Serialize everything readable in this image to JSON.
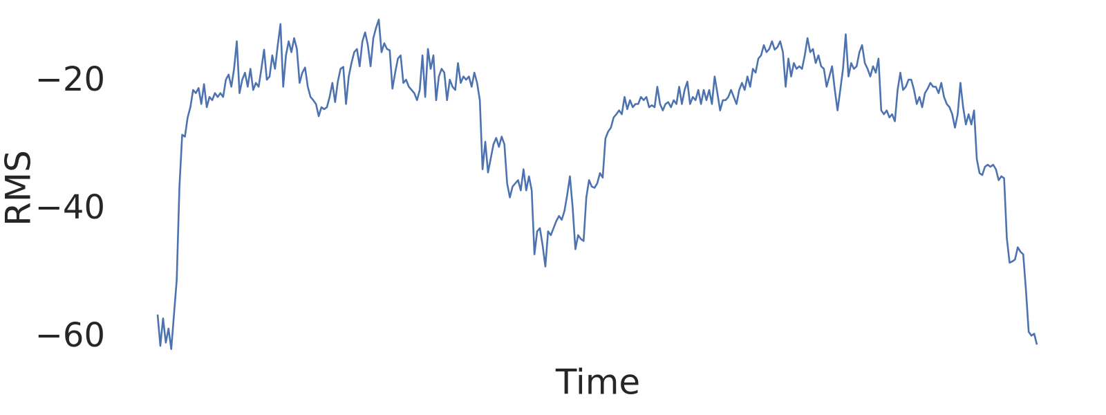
{
  "chart_data": {
    "type": "line",
    "xlabel": "Time",
    "ylabel": "RMS",
    "color": "#4c72b0",
    "grid": false,
    "ylim": [
      -63,
      -9
    ],
    "yticks": [
      {
        "value": -60,
        "label": "−60"
      },
      {
        "value": -40,
        "label": "−40"
      },
      {
        "value": -20,
        "label": "−20"
      }
    ],
    "values": [
      -56.4,
      -61.3,
      -57,
      -60.8,
      -58.6,
      -61.8,
      -56.4,
      -51,
      -36.4,
      -28.3,
      -28.6,
      -25.6,
      -24,
      -21.3,
      -21.8,
      -21,
      -23.5,
      -20.4,
      -24,
      -22.4,
      -22.9,
      -21.8,
      -22.4,
      -21.8,
      -22.4,
      -19.7,
      -18.9,
      -20.8,
      -18,
      -13.7,
      -21.8,
      -19.7,
      -18.6,
      -20.8,
      -18,
      -21.3,
      -20.2,
      -20.8,
      -18,
      -15,
      -19.7,
      -19.2,
      -15.9,
      -18,
      -14.3,
      -11,
      -20.8,
      -15.9,
      -13.7,
      -15.4,
      -13.2,
      -14.9,
      -20.2,
      -18.6,
      -17.8,
      -20.8,
      -22.4,
      -22.9,
      -23.5,
      -25.4,
      -24,
      -24.3,
      -24,
      -22.4,
      -20.2,
      -23.2,
      -20,
      -18,
      -17.7,
      -23.5,
      -19.2,
      -17.1,
      -15.4,
      -14.9,
      -17.6,
      -13.7,
      -12.3,
      -14.3,
      -17.6,
      -13.2,
      -11.6,
      -10.3,
      -15.4,
      -14,
      -14.9,
      -15.1,
      -21.1,
      -18.6,
      -16.4,
      -15.9,
      -20.2,
      -19.7,
      -20.8,
      -21.3,
      -21.8,
      -22.9,
      -21.3,
      -15.9,
      -22.4,
      -14.9,
      -18,
      -15.9,
      -22.9,
      -19.2,
      -18,
      -18.6,
      -22.9,
      -19.7,
      -20.8,
      -21.3,
      -17.1,
      -20.2,
      -19.2,
      -19.7,
      -19.2,
      -20.8,
      -18.6,
      -20.2,
      -22.9,
      -33.7,
      -29.4,
      -34.2,
      -32,
      -29.8,
      -28.8,
      -30.2,
      -28.6,
      -29.8,
      -35.9,
      -38.1,
      -36.4,
      -35.9,
      -35.4,
      -37,
      -33.7,
      -37,
      -34.8,
      -37,
      -47,
      -43.4,
      -42.9,
      -45.6,
      -48.9,
      -43.4,
      -44,
      -42.9,
      -41.8,
      -41,
      -41.6,
      -40.2,
      -37.7,
      -34.8,
      -39.7,
      -46.2,
      -44,
      -44.6,
      -44.9,
      -38.1,
      -35.4,
      -36.4,
      -36.6,
      -35.9,
      -34.3,
      -35,
      -28.9,
      -27.8,
      -27.2,
      -25.6,
      -25.1,
      -24.5,
      -25.1,
      -22.4,
      -24.3,
      -22.9,
      -24,
      -23.5,
      -23.5,
      -22.4,
      -22.9,
      -22.4,
      -24,
      -23.7,
      -24,
      -20.8,
      -23.5,
      -24.5,
      -23.5,
      -23.2,
      -24,
      -22.9,
      -23.5,
      -20.8,
      -23.5,
      -21.3,
      -20,
      -23.5,
      -22.4,
      -22.9,
      -21.3,
      -23.5,
      -21.3,
      -22.9,
      -21.3,
      -23.5,
      -19.2,
      -21.8,
      -24.5,
      -22.9,
      -22.9,
      -22.4,
      -21.3,
      -22.4,
      -23.5,
      -21.3,
      -20.2,
      -21.3,
      -19.2,
      -20.8,
      -18,
      -18.6,
      -16.4,
      -15.9,
      -14.3,
      -15.4,
      -14.9,
      -13.7,
      -15,
      -14.6,
      -13.7,
      -15.4,
      -20.8,
      -16.4,
      -19.2,
      -17.1,
      -18,
      -17.6,
      -18,
      -15.9,
      -13.2,
      -15.4,
      -14.9,
      -17.1,
      -15.9,
      -17.6,
      -18,
      -20.8,
      -19.2,
      -17.6,
      -21.3,
      -24.5,
      -21.3,
      -18,
      -12.6,
      -19.2,
      -17.1,
      -18,
      -17.6,
      -15.4,
      -14.3,
      -17.1,
      -18,
      -19.2,
      -17.6,
      -18.6,
      -16.4,
      -24.5,
      -25.1,
      -24.5,
      -25.6,
      -25.1,
      -26.2,
      -21.3,
      -18.6,
      -21.3,
      -20.8,
      -19.7,
      -19.7,
      -21.3,
      -23.5,
      -22.4,
      -24,
      -21.8,
      -21.1,
      -20.2,
      -20.8,
      -20.8,
      -21.8,
      -20.2,
      -22.4,
      -23.5,
      -24,
      -25.1,
      -27.2,
      -25.1,
      -20.2,
      -24,
      -26.7,
      -25.1,
      -26.7,
      -24.5,
      -32.1,
      -34.3,
      -34.6,
      -33.3,
      -33,
      -33.3,
      -33,
      -33.7,
      -35.4,
      -34.8,
      -35.1,
      -44.5,
      -48.3,
      -48.1,
      -47.8,
      -45.9,
      -46.6,
      -47,
      -52.6,
      -59.1,
      -59.7,
      -59.4,
      -61.1
    ]
  }
}
